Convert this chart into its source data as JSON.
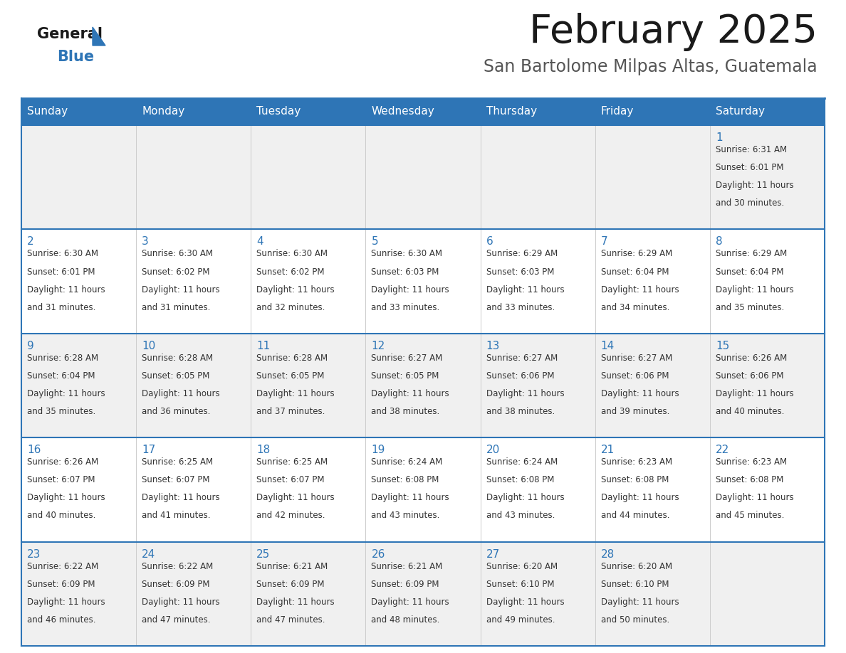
{
  "title": "February 2025",
  "subtitle": "San Bartolome Milpas Altas, Guatemala",
  "days_of_week": [
    "Sunday",
    "Monday",
    "Tuesday",
    "Wednesday",
    "Thursday",
    "Friday",
    "Saturday"
  ],
  "header_bg": "#2E75B6",
  "header_text_color": "#FFFFFF",
  "row_bg_odd": "#F0F0F0",
  "row_bg_even": "#FFFFFF",
  "cell_text_color": "#333333",
  "day_num_color": "#2E75B6",
  "border_color": "#2E75B6",
  "logo_general_color": "#1a1a1a",
  "logo_blue_color": "#2E75B6",
  "calendar_data": {
    "1": {
      "sunrise": "6:31 AM",
      "sunset": "6:01 PM",
      "daylight": "11 hours and 30 minutes."
    },
    "2": {
      "sunrise": "6:30 AM",
      "sunset": "6:01 PM",
      "daylight": "11 hours and 31 minutes."
    },
    "3": {
      "sunrise": "6:30 AM",
      "sunset": "6:02 PM",
      "daylight": "11 hours and 31 minutes."
    },
    "4": {
      "sunrise": "6:30 AM",
      "sunset": "6:02 PM",
      "daylight": "11 hours and 32 minutes."
    },
    "5": {
      "sunrise": "6:30 AM",
      "sunset": "6:03 PM",
      "daylight": "11 hours and 33 minutes."
    },
    "6": {
      "sunrise": "6:29 AM",
      "sunset": "6:03 PM",
      "daylight": "11 hours and 33 minutes."
    },
    "7": {
      "sunrise": "6:29 AM",
      "sunset": "6:04 PM",
      "daylight": "11 hours and 34 minutes."
    },
    "8": {
      "sunrise": "6:29 AM",
      "sunset": "6:04 PM",
      "daylight": "11 hours and 35 minutes."
    },
    "9": {
      "sunrise": "6:28 AM",
      "sunset": "6:04 PM",
      "daylight": "11 hours and 35 minutes."
    },
    "10": {
      "sunrise": "6:28 AM",
      "sunset": "6:05 PM",
      "daylight": "11 hours and 36 minutes."
    },
    "11": {
      "sunrise": "6:28 AM",
      "sunset": "6:05 PM",
      "daylight": "11 hours and 37 minutes."
    },
    "12": {
      "sunrise": "6:27 AM",
      "sunset": "6:05 PM",
      "daylight": "11 hours and 38 minutes."
    },
    "13": {
      "sunrise": "6:27 AM",
      "sunset": "6:06 PM",
      "daylight": "11 hours and 38 minutes."
    },
    "14": {
      "sunrise": "6:27 AM",
      "sunset": "6:06 PM",
      "daylight": "11 hours and 39 minutes."
    },
    "15": {
      "sunrise": "6:26 AM",
      "sunset": "6:06 PM",
      "daylight": "11 hours and 40 minutes."
    },
    "16": {
      "sunrise": "6:26 AM",
      "sunset": "6:07 PM",
      "daylight": "11 hours and 40 minutes."
    },
    "17": {
      "sunrise": "6:25 AM",
      "sunset": "6:07 PM",
      "daylight": "11 hours and 41 minutes."
    },
    "18": {
      "sunrise": "6:25 AM",
      "sunset": "6:07 PM",
      "daylight": "11 hours and 42 minutes."
    },
    "19": {
      "sunrise": "6:24 AM",
      "sunset": "6:08 PM",
      "daylight": "11 hours and 43 minutes."
    },
    "20": {
      "sunrise": "6:24 AM",
      "sunset": "6:08 PM",
      "daylight": "11 hours and 43 minutes."
    },
    "21": {
      "sunrise": "6:23 AM",
      "sunset": "6:08 PM",
      "daylight": "11 hours and 44 minutes."
    },
    "22": {
      "sunrise": "6:23 AM",
      "sunset": "6:08 PM",
      "daylight": "11 hours and 45 minutes."
    },
    "23": {
      "sunrise": "6:22 AM",
      "sunset": "6:09 PM",
      "daylight": "11 hours and 46 minutes."
    },
    "24": {
      "sunrise": "6:22 AM",
      "sunset": "6:09 PM",
      "daylight": "11 hours and 47 minutes."
    },
    "25": {
      "sunrise": "6:21 AM",
      "sunset": "6:09 PM",
      "daylight": "11 hours and 47 minutes."
    },
    "26": {
      "sunrise": "6:21 AM",
      "sunset": "6:09 PM",
      "daylight": "11 hours and 48 minutes."
    },
    "27": {
      "sunrise": "6:20 AM",
      "sunset": "6:10 PM",
      "daylight": "11 hours and 49 minutes."
    },
    "28": {
      "sunrise": "6:20 AM",
      "sunset": "6:10 PM",
      "daylight": "11 hours and 50 minutes."
    }
  }
}
